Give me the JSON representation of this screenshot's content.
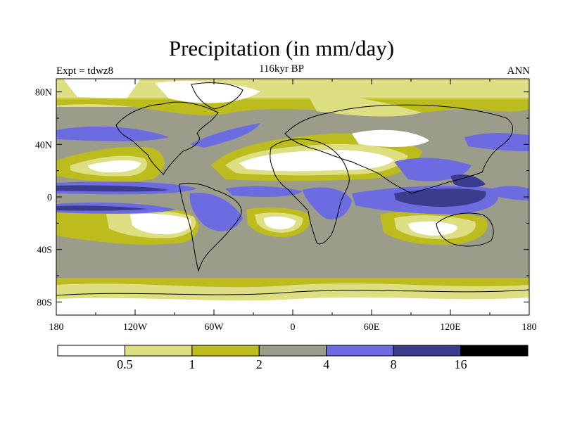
{
  "title": "Precipitation (in mm/day)",
  "subtitle": "116kyr BP",
  "left_label": "Expt = tdwz8",
  "right_label": "ANN",
  "map": {
    "lon_labels": [
      "180",
      "120W",
      "60W",
      "0",
      "60E",
      "120E",
      "180"
    ],
    "lon_values": [
      -180,
      -120,
      -60,
      0,
      60,
      120,
      180
    ],
    "lat_labels": [
      "80N",
      "40N",
      "0",
      "40S",
      "80S"
    ],
    "lat_values": [
      80,
      40,
      0,
      -40,
      -80
    ],
    "lat_range": [
      -90,
      90
    ],
    "lon_range": [
      -180,
      180
    ]
  },
  "colorbar": {
    "colors": [
      "#ffffff",
      "#dede82",
      "#bcbc1e",
      "#9c9c8a",
      "#6c6ce0",
      "#3c3c8e",
      "#000000"
    ],
    "labels": [
      "0.5",
      "1",
      "2",
      "4",
      "8",
      "16"
    ]
  }
}
